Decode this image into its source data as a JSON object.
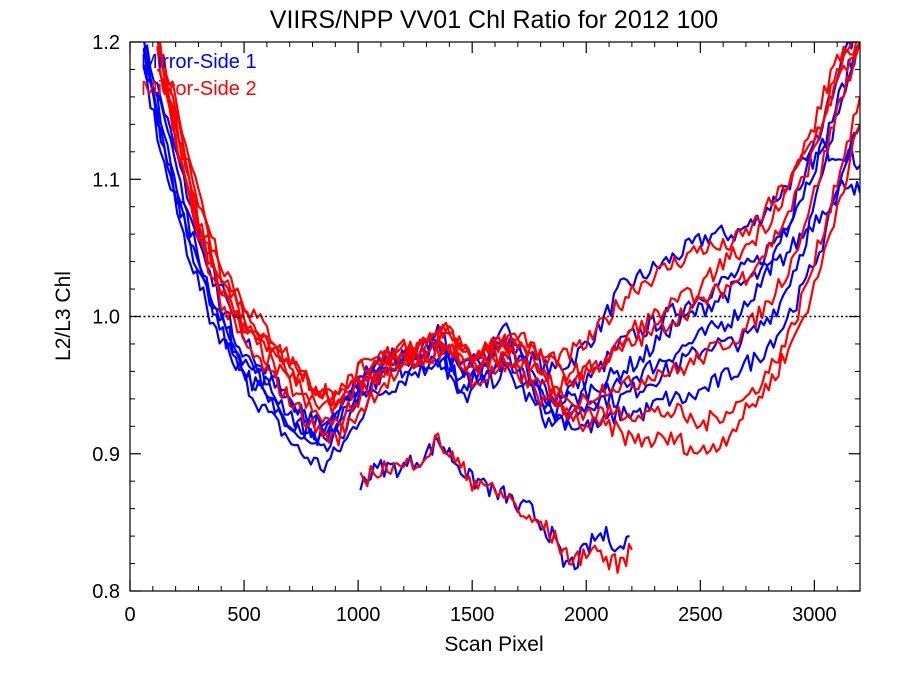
{
  "chart_data": {
    "type": "line",
    "title": "VIIRS/NPP VV01 Chl Ratio for 2012 100",
    "xlabel": "Scan Pixel",
    "ylabel": "L2/L3 Chl",
    "xlim": [
      0,
      3200
    ],
    "ylim": [
      0.8,
      1.2
    ],
    "x_ticks": [
      "0",
      "500",
      "1000",
      "1500",
      "2000",
      "2500",
      "3000"
    ],
    "y_ticks": [
      "0.8",
      "0.9",
      "1.0",
      "1.1",
      "1.2"
    ],
    "reference_line": {
      "y": 1.0,
      "style": "dotted"
    },
    "legend_position": "top-left",
    "series": [
      {
        "name": "Mirror-Side 1",
        "color": "#0000ff",
        "profiles": [
          {
            "x": [
              60,
              150,
              250,
              350,
              450,
              550,
              650,
              750,
              850,
              950,
              1050,
              1150,
              1250,
              1350,
              1450,
              1550,
              1650,
              1750,
              1850,
              1950,
              2050,
              2150,
              2250,
              2350,
              2450,
              2550,
              2650,
              2750,
              2850,
              2950,
              3050,
              3150,
              3200
            ],
            "y": [
              1.2,
              1.15,
              1.09,
              1.04,
              1.0,
              0.97,
              0.95,
              0.93,
              0.92,
              0.94,
              0.96,
              0.97,
              0.97,
              0.98,
              0.96,
              0.97,
              0.98,
              0.97,
              0.96,
              0.97,
              0.99,
              1.02,
              1.03,
              1.04,
              1.05,
              1.06,
              1.06,
              1.07,
              1.09,
              1.11,
              1.12,
              1.12,
              1.11
            ]
          },
          {
            "x": [
              60,
              150,
              250,
              350,
              450,
              550,
              650,
              750,
              850,
              950,
              1050,
              1150,
              1250,
              1350,
              1450,
              1550,
              1650,
              1750,
              1850,
              1950,
              2050,
              2150,
              2250,
              2350,
              2450,
              2550,
              2650,
              2750,
              2850,
              2950,
              3050,
              3150,
              3200
            ],
            "y": [
              1.2,
              1.13,
              1.07,
              1.02,
              0.98,
              0.95,
              0.93,
              0.91,
              0.9,
              0.92,
              0.95,
              0.96,
              0.97,
              0.98,
              0.95,
              0.96,
              0.97,
              0.95,
              0.94,
              0.95,
              0.96,
              0.98,
              0.99,
              1.0,
              1.01,
              1.02,
              1.03,
              1.04,
              1.06,
              1.09,
              1.13,
              1.18,
              1.2
            ]
          },
          {
            "x": [
              60,
              150,
              250,
              350,
              450,
              550,
              650,
              750,
              850,
              950,
              1050,
              1150,
              1250,
              1350,
              1450,
              1550,
              1650,
              1750,
              1850,
              1950,
              2050,
              2150,
              2250,
              2350,
              2450,
              2550,
              2650,
              2750,
              2850,
              2950,
              3050,
              3150,
              3200
            ],
            "y": [
              1.19,
              1.12,
              1.06,
              1.01,
              0.97,
              0.94,
              0.92,
              0.9,
              0.89,
              0.91,
              0.94,
              0.95,
              0.96,
              0.97,
              0.94,
              0.95,
              0.96,
              0.94,
              0.92,
              0.93,
              0.94,
              0.95,
              0.96,
              0.97,
              0.98,
              0.99,
              1.0,
              1.02,
              1.05,
              1.1,
              1.15,
              1.2,
              1.2
            ]
          },
          {
            "x": [
              60,
              150,
              250,
              350,
              450,
              550,
              650,
              750,
              850,
              950,
              1050,
              1150,
              1250,
              1350,
              1450,
              1550,
              1650,
              1750,
              1850,
              1950,
              2050,
              2150,
              2250,
              2350,
              2450,
              2550,
              2650,
              2750,
              2850,
              2950,
              3050,
              3150,
              3200
            ],
            "y": [
              1.18,
              1.11,
              1.05,
              1.0,
              0.97,
              0.95,
              0.93,
              0.92,
              0.91,
              0.93,
              0.95,
              0.96,
              0.96,
              0.97,
              0.95,
              0.96,
              0.97,
              0.95,
              0.93,
              0.93,
              0.94,
              0.94,
              0.95,
              0.96,
              0.97,
              0.98,
              0.98,
              0.99,
              1.01,
              1.05,
              1.11,
              1.18,
              1.2
            ]
          },
          {
            "x": [
              60,
              150,
              250,
              350,
              450,
              550,
              650,
              750,
              850,
              950,
              1050,
              1150,
              1250,
              1350,
              1450,
              1550,
              1650,
              1750,
              1850,
              1950,
              2050,
              2150,
              2250,
              2350,
              2450,
              2550,
              2650,
              2750,
              2850,
              2950,
              3050,
              3150,
              3200
            ],
            "y": [
              1.2,
              1.14,
              1.08,
              1.03,
              0.99,
              0.96,
              0.94,
              0.92,
              0.91,
              0.93,
              0.96,
              0.97,
              0.97,
              0.99,
              0.96,
              0.97,
              0.99,
              0.96,
              0.94,
              0.94,
              0.95,
              0.96,
              0.97,
              0.99,
              1.0,
              1.01,
              1.02,
              1.03,
              1.04,
              1.06,
              1.08,
              1.1,
              1.09
            ]
          },
          {
            "x": [
              60,
              150,
              250,
              350,
              450,
              550,
              650,
              750,
              850,
              950,
              1050,
              1150,
              1250,
              1350,
              1450,
              1550,
              1650,
              1750,
              1850,
              1950,
              2050,
              2150,
              2250,
              2350,
              2450,
              2550,
              2650,
              2750,
              2850,
              2950,
              3050,
              3150,
              3200
            ],
            "y": [
              1.19,
              1.12,
              1.06,
              1.01,
              0.98,
              0.96,
              0.95,
              0.93,
              0.92,
              0.94,
              0.96,
              0.97,
              0.97,
              0.98,
              0.96,
              0.97,
              0.98,
              0.96,
              0.93,
              0.92,
              0.92,
              0.93,
              0.93,
              0.94,
              0.94,
              0.95,
              0.96,
              0.97,
              0.99,
              1.02,
              1.06,
              1.12,
              1.14
            ]
          },
          {
            "x": [
              1010,
              1100,
              1200,
              1300,
              1350,
              1400,
              1450,
              1500,
              1550,
              1600,
              1650,
              1700,
              1750,
              1800,
              1850,
              1900,
              1950,
              2000,
              2050,
              2100,
              2150,
              2190
            ],
            "y": [
              0.88,
              0.89,
              0.89,
              0.9,
              0.91,
              0.9,
              0.89,
              0.88,
              0.88,
              0.87,
              0.87,
              0.86,
              0.86,
              0.85,
              0.84,
              0.82,
              0.82,
              0.83,
              0.84,
              0.84,
              0.83,
              0.84
            ]
          }
        ]
      },
      {
        "name": "Mirror-Side 2",
        "color": "#ff0000",
        "profiles": [
          {
            "x": [
              120,
              200,
              300,
              400,
              500,
              600,
              700,
              800,
              900,
              1000,
              1100,
              1200,
              1300,
              1400,
              1500,
              1600,
              1700,
              1800,
              1900,
              2000,
              2100,
              2200,
              2300,
              2400,
              2500,
              2600,
              2700,
              2800,
              2900,
              3000,
              3100,
              3200
            ],
            "y": [
              1.2,
              1.16,
              1.09,
              1.04,
              1.01,
              0.99,
              0.97,
              0.95,
              0.94,
              0.96,
              0.97,
              0.98,
              0.98,
              0.99,
              0.97,
              0.98,
              0.98,
              0.97,
              0.97,
              0.98,
              1.0,
              1.02,
              1.03,
              1.04,
              1.05,
              1.05,
              1.06,
              1.08,
              1.1,
              1.13,
              1.17,
              1.2
            ]
          },
          {
            "x": [
              120,
              200,
              300,
              400,
              500,
              600,
              700,
              800,
              900,
              1000,
              1100,
              1200,
              1300,
              1400,
              1500,
              1600,
              1700,
              1800,
              1900,
              2000,
              2100,
              2200,
              2300,
              2400,
              2500,
              2600,
              2700,
              2800,
              2900,
              3000,
              3100,
              3200
            ],
            "y": [
              1.19,
              1.14,
              1.07,
              1.02,
              0.99,
              0.97,
              0.95,
              0.93,
              0.92,
              0.94,
              0.96,
              0.97,
              0.97,
              0.98,
              0.96,
              0.97,
              0.97,
              0.95,
              0.95,
              0.96,
              0.97,
              0.98,
              0.99,
              1.0,
              1.01,
              1.02,
              1.03,
              1.05,
              1.08,
              1.12,
              1.18,
              1.2
            ]
          },
          {
            "x": [
              120,
              200,
              300,
              400,
              500,
              600,
              700,
              800,
              900,
              1000,
              1100,
              1200,
              1300,
              1400,
              1500,
              1600,
              1700,
              1800,
              1900,
              2000,
              2100,
              2200,
              2300,
              2400,
              2500,
              2600,
              2700,
              2800,
              2900,
              3000,
              3100,
              3200
            ],
            "y": [
              1.18,
              1.13,
              1.06,
              1.01,
              0.98,
              0.96,
              0.94,
              0.92,
              0.91,
              0.93,
              0.95,
              0.96,
              0.97,
              0.98,
              0.95,
              0.96,
              0.96,
              0.94,
              0.93,
              0.94,
              0.95,
              0.95,
              0.96,
              0.96,
              0.97,
              0.98,
              0.99,
              1.01,
              1.04,
              1.09,
              1.15,
              1.2
            ]
          },
          {
            "x": [
              120,
              200,
              300,
              400,
              500,
              600,
              700,
              800,
              900,
              1000,
              1100,
              1200,
              1300,
              1400,
              1500,
              1600,
              1700,
              1800,
              1900,
              2000,
              2100,
              2200,
              2300,
              2400,
              2500,
              2600,
              2700,
              2800,
              2900,
              3000,
              3100,
              3200
            ],
            "y": [
              1.2,
              1.15,
              1.08,
              1.03,
              1.0,
              0.98,
              0.96,
              0.94,
              0.93,
              0.95,
              0.96,
              0.97,
              0.97,
              0.98,
              0.96,
              0.97,
              0.97,
              0.96,
              0.94,
              0.93,
              0.93,
              0.93,
              0.93,
              0.93,
              0.92,
              0.93,
              0.94,
              0.96,
              0.99,
              1.04,
              1.1,
              1.16
            ]
          },
          {
            "x": [
              120,
              200,
              300,
              400,
              500,
              600,
              700,
              800,
              900,
              1000,
              1100,
              1200,
              1300,
              1400,
              1500,
              1600,
              1700,
              1800,
              1900,
              2000,
              2100,
              2200,
              2300,
              2400,
              2500,
              2600,
              2700,
              2800,
              2900,
              3000,
              3100,
              3200
            ],
            "y": [
              1.19,
              1.13,
              1.06,
              1.02,
              0.99,
              0.98,
              0.96,
              0.95,
              0.94,
              0.95,
              0.97,
              0.97,
              0.98,
              0.99,
              0.97,
              0.98,
              0.98,
              0.96,
              0.93,
              0.92,
              0.92,
              0.91,
              0.91,
              0.91,
              0.9,
              0.91,
              0.93,
              0.95,
              0.98,
              1.02,
              1.08,
              1.14
            ]
          },
          {
            "x": [
              120,
              200,
              300,
              400,
              500,
              600,
              700,
              800,
              900,
              1000,
              1100,
              1200,
              1300,
              1400,
              1500,
              1600,
              1700,
              1800,
              1900,
              2000,
              2100,
              2200,
              2300,
              2400,
              2500,
              2600,
              2700,
              2800,
              2900,
              3000,
              3100,
              3200
            ],
            "y": [
              1.2,
              1.14,
              1.07,
              1.03,
              1.0,
              0.98,
              0.97,
              0.95,
              0.94,
              0.96,
              0.97,
              0.98,
              0.98,
              0.99,
              0.97,
              0.98,
              0.99,
              0.97,
              0.96,
              0.96,
              0.97,
              0.99,
              1.0,
              1.01,
              1.02,
              1.04,
              1.05,
              1.07,
              1.1,
              1.14,
              1.19,
              1.2
            ]
          },
          {
            "x": [
              1010,
              1100,
              1200,
              1300,
              1350,
              1400,
              1450,
              1500,
              1550,
              1600,
              1650,
              1700,
              1750,
              1800,
              1850,
              1900,
              1950,
              2000,
              2050,
              2100,
              2150,
              2200
            ],
            "y": [
              0.88,
              0.89,
              0.89,
              0.9,
              0.91,
              0.9,
              0.89,
              0.88,
              0.88,
              0.87,
              0.87,
              0.86,
              0.85,
              0.85,
              0.84,
              0.83,
              0.82,
              0.83,
              0.83,
              0.82,
              0.82,
              0.83
            ]
          }
        ]
      }
    ]
  }
}
